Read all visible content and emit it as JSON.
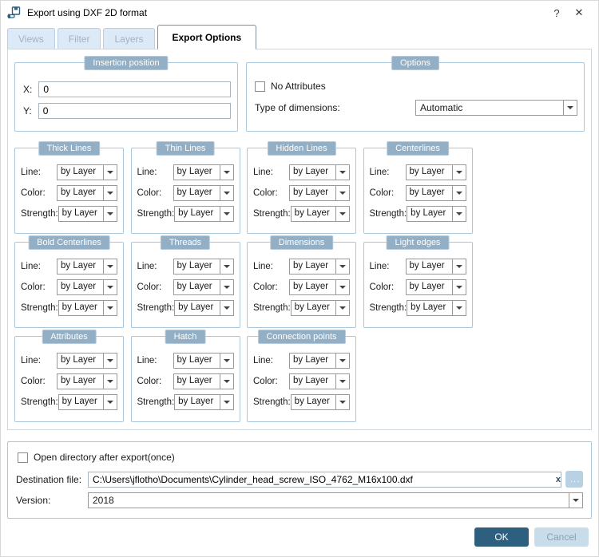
{
  "dialog": {
    "title": "Export using DXF 2D format",
    "help_label": "?",
    "close_label": "✕"
  },
  "tabs": [
    {
      "label": "Views",
      "active": false
    },
    {
      "label": "Filter",
      "active": false
    },
    {
      "label": "Layers",
      "active": false
    },
    {
      "label": "Export Options",
      "active": true
    }
  ],
  "insertion": {
    "title": "Insertion position",
    "x_label": "X:",
    "x_value": "0",
    "y_label": "Y:",
    "y_value": "0"
  },
  "options": {
    "title": "Options",
    "no_attributes_label": "No Attributes",
    "no_attributes_checked": false,
    "type_of_dimensions_label": "Type of dimensions:",
    "type_of_dimensions_value": "Automatic"
  },
  "style_groups": {
    "row_labels": {
      "line": "Line:",
      "color": "Color:",
      "strength": "Strength:"
    },
    "value": "by Layer",
    "groups": [
      "Thick Lines",
      "Thin Lines",
      "Hidden Lines",
      "Centerlines",
      "Bold Centerlines",
      "Threads",
      "Dimensions",
      "Light edges",
      "Attributes",
      "Hatch",
      "Connection points"
    ]
  },
  "footer": {
    "open_directory_label": "Open directory after export(once)",
    "open_directory_checked": false,
    "destination_label": "Destination file:",
    "destination_value": "C:\\Users\\jflotho\\Documents\\Cylinder_head_screw_ISO_4762_M16x100.dxf",
    "clear_label": "x",
    "browse_label": "...",
    "version_label": "Version:",
    "version_value": "2018"
  },
  "actions": {
    "ok_label": "OK",
    "cancel_label": "Cancel"
  },
  "colors": {
    "accent": "#2d5f7e",
    "group_title_bg": "#92afc5",
    "group_border": "#a9c7da",
    "tab_inactive_bg": "#dce9f6",
    "cancel_bg": "#c9dcea"
  }
}
